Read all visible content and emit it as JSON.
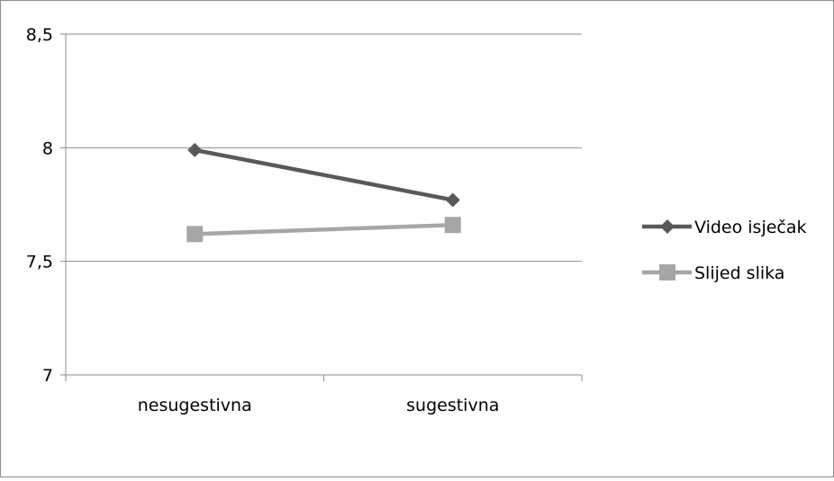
{
  "chart_data": {
    "type": "line",
    "categories": [
      "nesugestivna",
      "sugestivna"
    ],
    "series": [
      {
        "name": "Video isječak",
        "values": [
          7.99,
          7.77
        ],
        "color": "#595959",
        "marker": "diamond"
      },
      {
        "name": "Slijed slika",
        "values": [
          7.62,
          7.66
        ],
        "color": "#a6a6a6",
        "marker": "square"
      }
    ],
    "ylim": [
      7,
      8.5
    ],
    "yticks": [
      "7",
      "7,5",
      "8",
      "8,5"
    ],
    "ytick_values": [
      7,
      7.5,
      8,
      8.5
    ],
    "grid": true,
    "legend_position": "right"
  }
}
